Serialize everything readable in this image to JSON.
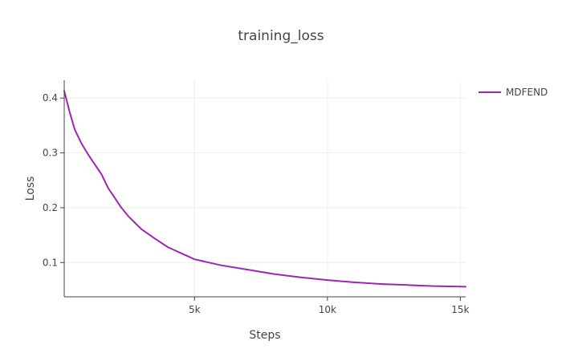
{
  "chart_data": {
    "type": "line",
    "title": "training_loss",
    "xlabel": "Steps",
    "ylabel": "Loss",
    "xlim": [
      100,
      15200
    ],
    "ylim": [
      0.0375,
      0.4325
    ],
    "x_ticks": [
      5000,
      10000,
      15000
    ],
    "x_tick_labels": [
      "5k",
      "10k",
      "15k"
    ],
    "y_ticks": [
      0.1,
      0.2,
      0.3,
      0.4
    ],
    "y_tick_labels": [
      "0.1",
      "0.2",
      "0.3",
      "0.4"
    ],
    "grid": true,
    "legend_position": "top-right",
    "series": [
      {
        "name": "MDFEND",
        "color": "#9c27b0",
        "x": [
          100,
          300,
          500,
          750,
          1000,
          1250,
          1500,
          1750,
          2000,
          2250,
          2500,
          2750,
          3000,
          3500,
          4000,
          4500,
          5000,
          6000,
          7000,
          8000,
          9000,
          10000,
          11000,
          12000,
          13000,
          14000,
          15200
        ],
        "y": [
          0.413,
          0.375,
          0.342,
          0.317,
          0.297,
          0.279,
          0.261,
          0.236,
          0.218,
          0.2,
          0.185,
          0.173,
          0.161,
          0.144,
          0.128,
          0.117,
          0.106,
          0.095,
          0.087,
          0.079,
          0.073,
          0.068,
          0.064,
          0.061,
          0.059,
          0.057,
          0.056
        ]
      }
    ]
  }
}
